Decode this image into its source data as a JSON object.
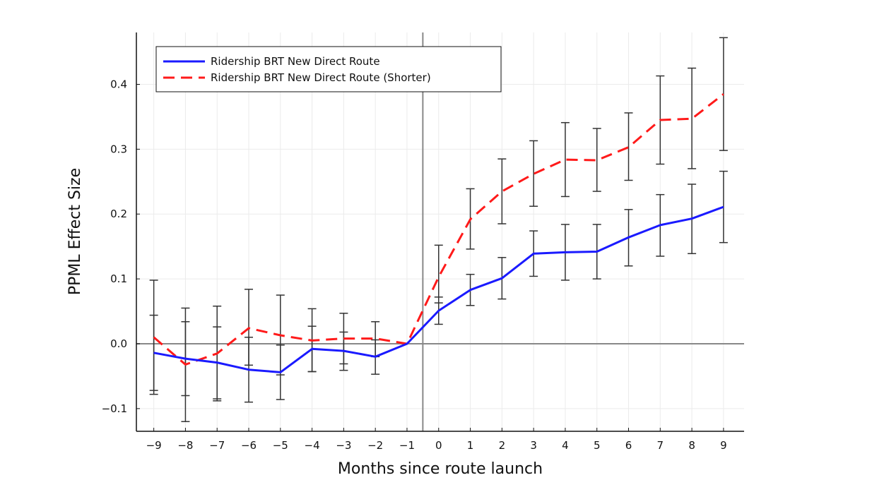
{
  "chart_data": {
    "type": "line",
    "xlabel": "Months since route launch",
    "ylabel": "PPML Effect Size",
    "xlim": [
      -9.55,
      9.65
    ],
    "ylim": [
      -0.135,
      0.48
    ],
    "x_ticks": [
      -9,
      -8,
      -7,
      -6,
      -5,
      -4,
      -3,
      -2,
      -1,
      0,
      1,
      2,
      3,
      4,
      5,
      6,
      7,
      8,
      9
    ],
    "x_tick_labels": [
      "−9",
      "−8",
      "−7",
      "−6",
      "−5",
      "−4",
      "−3",
      "−2",
      "−1",
      "0",
      "1",
      "2",
      "3",
      "4",
      "5",
      "6",
      "7",
      "8",
      "9"
    ],
    "y_ticks": [
      -0.1,
      0.0,
      0.1,
      0.2,
      0.3,
      0.4
    ],
    "y_tick_labels": [
      "−0.1",
      "0.0",
      "0.1",
      "0.2",
      "0.3",
      "0.4"
    ],
    "grid": true,
    "legend_position": "top-left",
    "reference_lines": {
      "vertical_x": -0.5,
      "horizontal_y": 0.0
    },
    "x": [
      -9,
      -8,
      -7,
      -6,
      -5,
      -4,
      -3,
      -2,
      -1,
      0,
      1,
      2,
      3,
      4,
      5,
      6,
      7,
      8,
      9
    ],
    "series": [
      {
        "name": "Ridership BRT New Direct Route",
        "color": "#1a1aff",
        "style": "solid",
        "values": [
          -0.014,
          -0.023,
          -0.029,
          -0.04,
          -0.044,
          -0.008,
          -0.011,
          -0.02,
          0.0,
          0.051,
          0.083,
          0.101,
          0.139,
          0.141,
          0.142,
          0.164,
          0.183,
          0.193,
          0.211
        ],
        "lower": [
          -0.072,
          -0.08,
          -0.085,
          -0.09,
          -0.086,
          -0.043,
          -0.041,
          -0.047,
          0.0,
          0.03,
          0.059,
          0.069,
          0.104,
          0.098,
          0.1,
          0.12,
          0.135,
          0.139,
          0.156
        ],
        "upper": [
          0.044,
          0.034,
          0.026,
          0.01,
          -0.002,
          0.027,
          0.018,
          0.006,
          0.0,
          0.072,
          0.107,
          0.133,
          0.174,
          0.184,
          0.184,
          0.207,
          0.23,
          0.246,
          0.266
        ]
      },
      {
        "name": "Ridership BRT New Direct Route (Shorter)",
        "color": "#ff1a1a",
        "style": "dashed",
        "values": [
          0.01,
          -0.032,
          -0.015,
          0.024,
          0.013,
          0.005,
          0.008,
          0.008,
          0.0,
          0.103,
          0.192,
          0.235,
          0.262,
          0.284,
          0.283,
          0.303,
          0.345,
          0.347,
          0.385
        ],
        "lower": [
          -0.078,
          -0.12,
          -0.088,
          -0.033,
          -0.048,
          -0.043,
          -0.031,
          -0.02,
          0.0,
          0.063,
          0.146,
          0.185,
          0.212,
          0.227,
          0.235,
          0.252,
          0.277,
          0.27,
          0.298
        ],
        "upper": [
          0.098,
          0.055,
          0.058,
          0.084,
          0.075,
          0.054,
          0.047,
          0.034,
          0.0,
          0.152,
          0.239,
          0.285,
          0.313,
          0.341,
          0.332,
          0.356,
          0.413,
          0.425,
          0.472
        ]
      }
    ]
  }
}
